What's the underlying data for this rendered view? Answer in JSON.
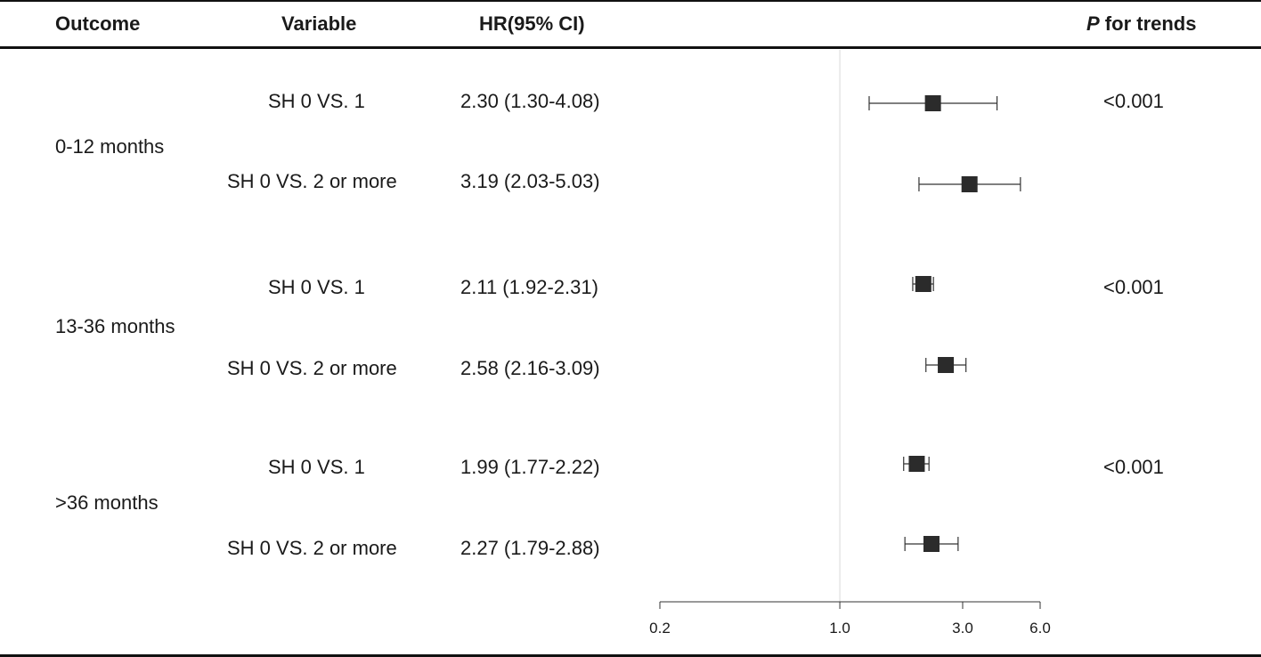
{
  "header": {
    "outcome": "Outcome",
    "variable": "Variable",
    "hr": "HR(95% CI)",
    "p_italic": "P",
    "p_rest": " for trends"
  },
  "groups": [
    {
      "label": "0-12 months",
      "p": "<0.001",
      "rows": [
        {
          "variable": "SH 0 VS. 1",
          "hr_text": "2.30 (1.30-4.08)"
        },
        {
          "variable": "SH 0 VS. 2 or more",
          "hr_text": "3.19 (2.03-5.03)"
        }
      ]
    },
    {
      "label": "13-36 months",
      "p": "<0.001",
      "rows": [
        {
          "variable": "SH 0 VS. 1",
          "hr_text": "2.11 (1.92-2.31)"
        },
        {
          "variable": "SH 0 VS. 2 or more",
          "hr_text": "2.58 (2.16-3.09)"
        }
      ]
    },
    {
      "label": ">36 months",
      "p": "<0.001",
      "rows": [
        {
          "variable": "SH 0 VS. 1",
          "hr_text": "1.99 (1.77-2.22)"
        },
        {
          "variable": "SH 0 VS. 2 or more",
          "hr_text": "2.27 (1.79-2.88)"
        }
      ]
    }
  ],
  "chart_data": {
    "type": "scatter",
    "subtype": "forest-plot",
    "x_scale": "log",
    "xlim": [
      0.2,
      6.0
    ],
    "x_ticks": [
      0.2,
      1.0,
      3.0,
      6.0
    ],
    "x_tick_labels": [
      "0.2",
      "1.0",
      "3.0",
      "6.0"
    ],
    "reference_line": 1.0,
    "series": [
      {
        "categories": [
          "0-12 months: SH 0 VS. 1",
          "0-12 months: SH 0 VS. 2 or more",
          "13-36 months: SH 0 VS. 1",
          "13-36 months: SH 0 VS. 2 or more",
          ">36 months: SH 0 VS. 1",
          ">36 months: SH 0 VS. 2 or more"
        ],
        "estimate": [
          2.3,
          3.19,
          2.11,
          2.58,
          1.99,
          2.27
        ],
        "lower": [
          1.3,
          2.03,
          1.92,
          2.16,
          1.77,
          1.79
        ],
        "upper": [
          4.08,
          5.03,
          2.31,
          3.09,
          2.22,
          2.88
        ]
      }
    ],
    "colors": {
      "marker": "#2b2b2b",
      "whisker": "#333333",
      "reference": "#d9d9d9"
    }
  }
}
